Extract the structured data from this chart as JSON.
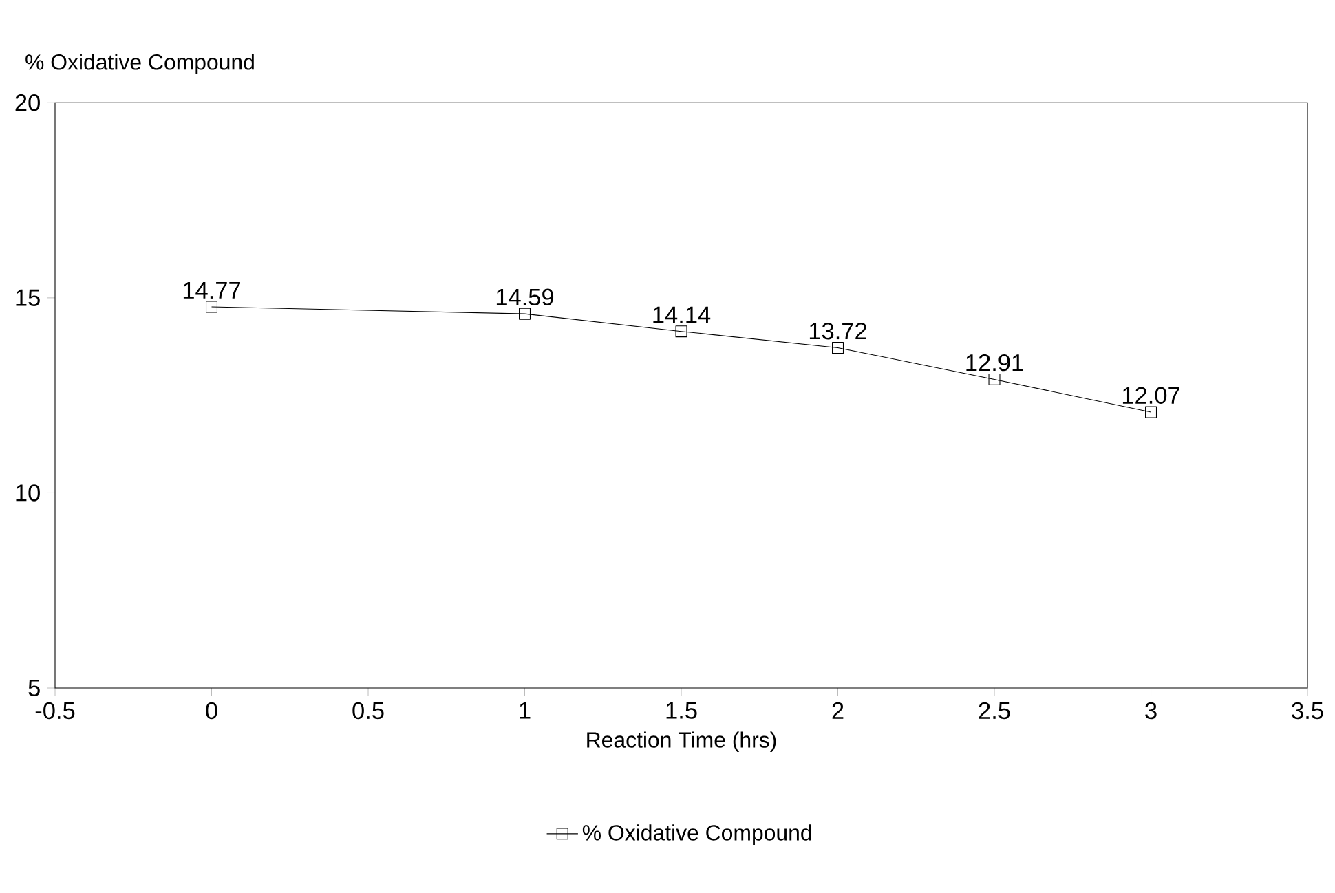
{
  "chart_data": {
    "type": "line",
    "ylabel": "% Oxidative Compound",
    "xlabel": "Reaction Time (hrs)",
    "x": [
      0,
      1,
      1.5,
      2,
      2.5,
      3
    ],
    "series": [
      {
        "name": "% Oxidative Compound",
        "color": "#000000",
        "values": [
          14.77,
          14.59,
          14.14,
          13.72,
          12.91,
          12.07
        ]
      }
    ],
    "xlim": [
      -0.5,
      3.5
    ],
    "xticks": [
      -0.5,
      0,
      0.5,
      1,
      1.5,
      2,
      2.5,
      3,
      3.5
    ],
    "ylim": [
      5,
      20
    ],
    "yticks": [
      5,
      10,
      15,
      20
    ],
    "marker": "square",
    "line_style": "solid",
    "data_labels": true,
    "legend": "bottom",
    "grid": false
  }
}
